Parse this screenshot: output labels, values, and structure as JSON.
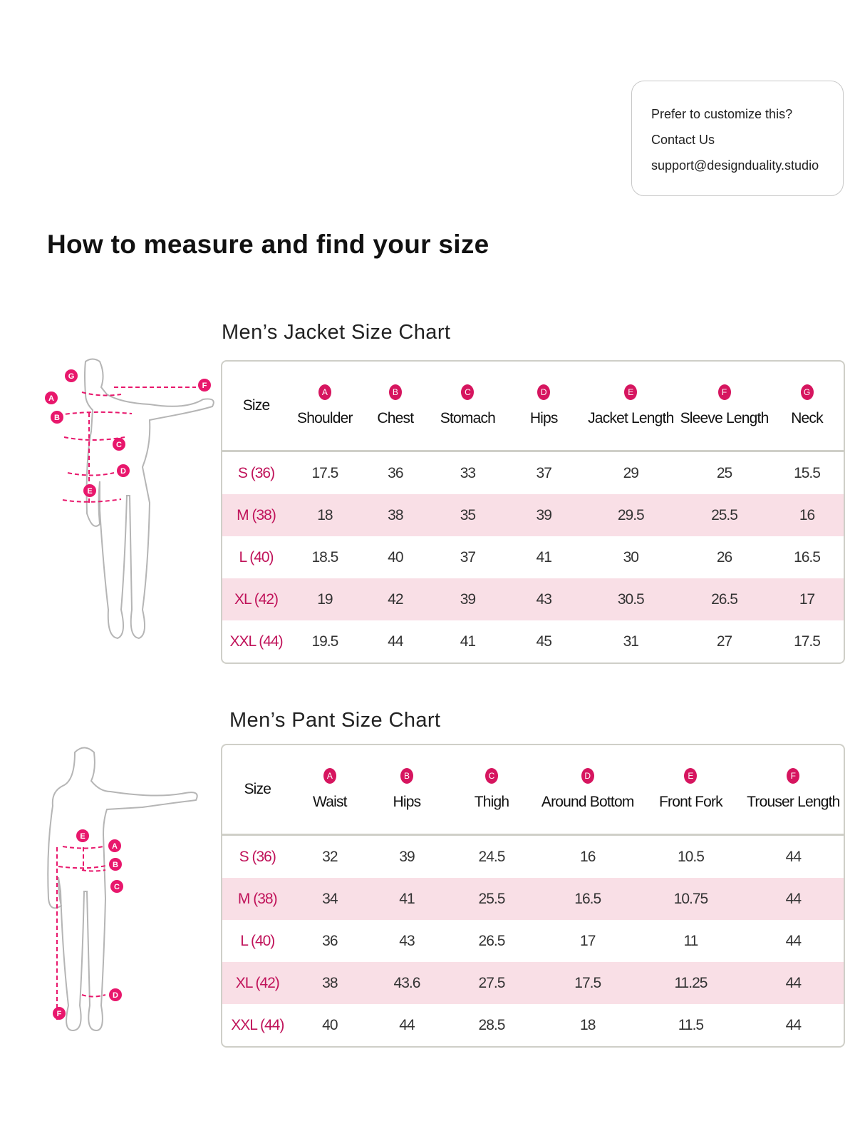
{
  "contact": {
    "line1": "Prefer to customize this?",
    "line2": "Contact Us",
    "email": "support@designduality.studio"
  },
  "page_title": "How to measure and find your size",
  "colors": {
    "accent": "#d6155f",
    "size_label": "#c0135a",
    "alt_row": "#f9dfe6",
    "border": "#cfcfc8"
  },
  "jacket": {
    "title": "Men’s Jacket Size Chart",
    "figure_markers": [
      "A",
      "B",
      "C",
      "D",
      "E",
      "F",
      "G"
    ],
    "columns": [
      {
        "badge": "",
        "label": "Size"
      },
      {
        "badge": "A",
        "label": "Shoulder"
      },
      {
        "badge": "B",
        "label": "Chest"
      },
      {
        "badge": "C",
        "label": "Stomach"
      },
      {
        "badge": "D",
        "label": "Hips"
      },
      {
        "badge": "E",
        "label": "Jacket Length"
      },
      {
        "badge": "F",
        "label": "Sleeve Length"
      },
      {
        "badge": "G",
        "label": "Neck"
      }
    ],
    "rows": [
      [
        "S (36)",
        "17.5",
        "36",
        "33",
        "37",
        "29",
        "25",
        "15.5"
      ],
      [
        "M (38)",
        "18",
        "38",
        "35",
        "39",
        "29.5",
        "25.5",
        "16"
      ],
      [
        "L (40)",
        "18.5",
        "40",
        "37",
        "41",
        "30",
        "26",
        "16.5"
      ],
      [
        "XL (42)",
        "19",
        "42",
        "39",
        "43",
        "30.5",
        "26.5",
        "17"
      ],
      [
        "XXL (44)",
        "19.5",
        "44",
        "41",
        "45",
        "31",
        "27",
        "17.5"
      ]
    ]
  },
  "pant": {
    "title": "Men’s Pant Size Chart",
    "figure_markers": [
      "A",
      "B",
      "C",
      "D",
      "E",
      "F"
    ],
    "columns": [
      {
        "badge": "",
        "label": "Size"
      },
      {
        "badge": "A",
        "label": "Waist"
      },
      {
        "badge": "B",
        "label": "Hips"
      },
      {
        "badge": "C",
        "label": "Thigh"
      },
      {
        "badge": "D",
        "label": "Around Bottom"
      },
      {
        "badge": "E",
        "label": "Front Fork"
      },
      {
        "badge": "F",
        "label": "Trouser Length"
      }
    ],
    "rows": [
      [
        "S (36)",
        "32",
        "39",
        "24.5",
        "16",
        "10.5",
        "44"
      ],
      [
        "M (38)",
        "34",
        "41",
        "25.5",
        "16.5",
        "10.75",
        "44"
      ],
      [
        "L (40)",
        "36",
        "43",
        "26.5",
        "17",
        "11",
        "44"
      ],
      [
        "XL (42)",
        "38",
        "43.6",
        "27.5",
        "17.5",
        "11.25",
        "44"
      ],
      [
        "XXL (44)",
        "40",
        "44",
        "28.5",
        "18",
        "11.5",
        "44"
      ]
    ]
  }
}
